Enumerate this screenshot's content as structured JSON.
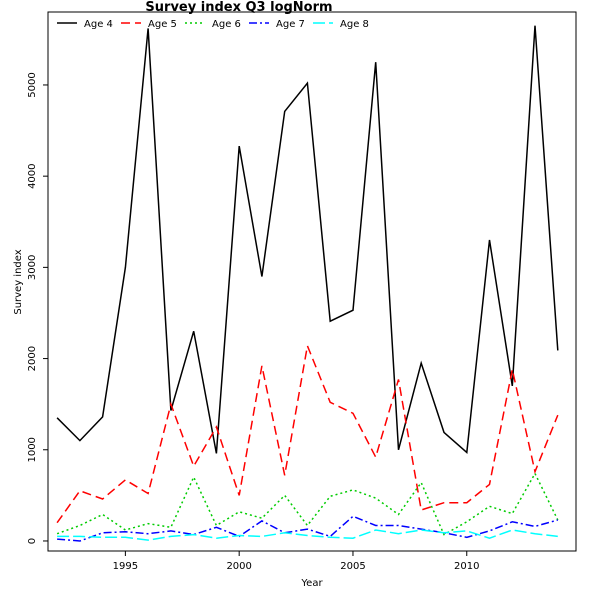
{
  "chart_data": {
    "type": "line",
    "title": "Survey index Q3 logNorm",
    "xlabel": "Year",
    "ylabel": "Survey index",
    "xlim": [
      1991.6,
      2014.8
    ],
    "ylim": [
      -110,
      5800
    ],
    "xticks": [
      1995,
      2000,
      2005,
      2010
    ],
    "yticks": [
      0,
      1000,
      2000,
      3000,
      4000,
      5000
    ],
    "grid": false,
    "legend_position": "top-left",
    "x": [
      1992,
      1993,
      1994,
      1995,
      1996,
      1997,
      1998,
      1999,
      2000,
      2001,
      2002,
      2003,
      2004,
      2005,
      2006,
      2007,
      2008,
      2009,
      2010,
      2011,
      2012,
      2013,
      2014
    ],
    "series": [
      {
        "name": "Age 4",
        "color": "#000000",
        "dash": "",
        "values": [
          1350,
          1100,
          1360,
          3000,
          5620,
          1430,
          2300,
          960,
          4330,
          2900,
          4710,
          5020,
          2410,
          2530,
          5250,
          1000,
          1950,
          1190,
          970,
          3300,
          1700,
          5650,
          2090
        ]
      },
      {
        "name": "Age 5",
        "color": "#ff0000",
        "dash": "9,5",
        "values": [
          200,
          550,
          460,
          670,
          520,
          1500,
          820,
          1250,
          500,
          1920,
          720,
          2140,
          1520,
          1400,
          920,
          1770,
          340,
          420,
          420,
          620,
          1880,
          760,
          1380
        ]
      },
      {
        "name": "Age 6",
        "color": "#00cc00",
        "dash": "2,3",
        "values": [
          80,
          170,
          290,
          120,
          190,
          150,
          700,
          170,
          320,
          250,
          500,
          170,
          490,
          560,
          470,
          290,
          640,
          70,
          210,
          380,
          300,
          740,
          230
        ]
      },
      {
        "name": "Age 7",
        "color": "#0000ff",
        "dash": "8,3,2,3",
        "values": [
          20,
          0,
          90,
          100,
          80,
          110,
          70,
          150,
          50,
          220,
          90,
          130,
          50,
          270,
          170,
          170,
          130,
          90,
          40,
          110,
          210,
          160,
          230
        ]
      },
      {
        "name": "Age 8",
        "color": "#00ffff",
        "dash": "12,4",
        "values": [
          50,
          50,
          40,
          40,
          10,
          50,
          70,
          30,
          60,
          50,
          90,
          60,
          40,
          30,
          120,
          80,
          120,
          90,
          110,
          30,
          120,
          80,
          50
        ]
      }
    ]
  }
}
